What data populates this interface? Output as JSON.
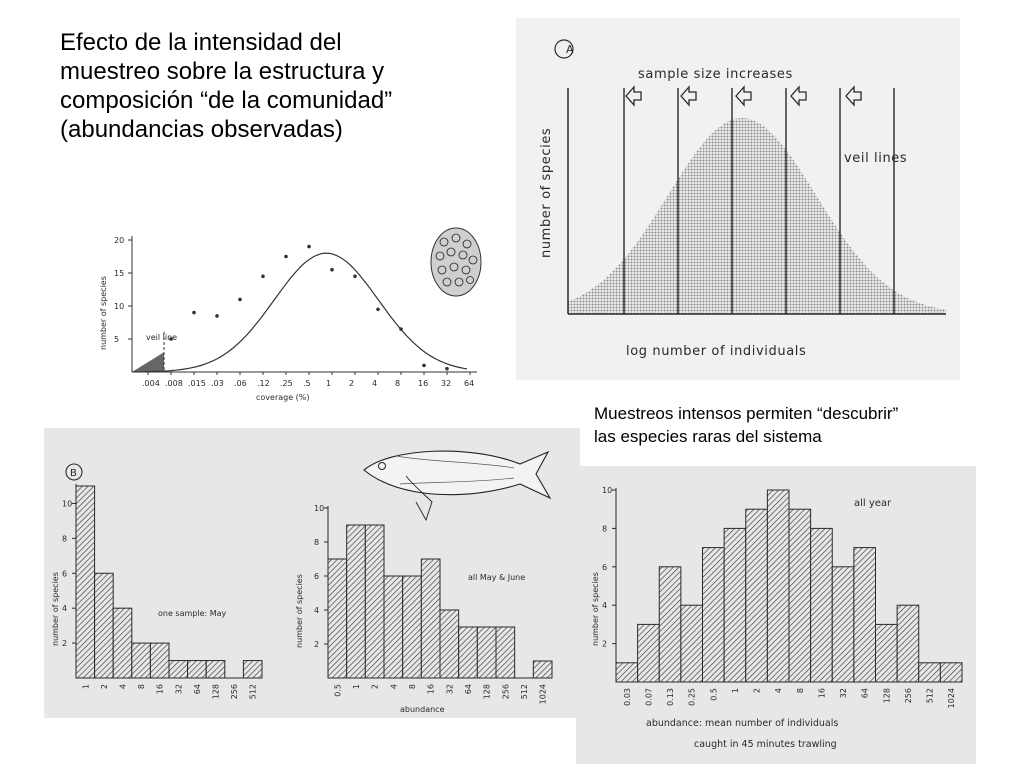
{
  "slide": {
    "title_lines": [
      "Efecto de la intensidad del",
      "muestreo sobre la estructura y",
      "composición “de la comunidad”",
      "(abundancias observadas)"
    ],
    "note_lines": [
      "Muestreos intensos permiten “descubrir”",
      "las especies raras del sistema"
    ]
  },
  "colors": {
    "panel_bg": "#e7e7e5",
    "ink": "#2a2a2a",
    "hatch": "#3a3a3a",
    "curve_fill": "#9a9a9a"
  },
  "chart_data": [
    {
      "id": "veil",
      "type": "area",
      "panel_label": "A",
      "annotation": "sample size increases",
      "veil_label": "veil lines",
      "ylabel": "number of species",
      "xlabel": "log number of individuals",
      "veil_line_count": 6,
      "arrow_count": 5
    },
    {
      "id": "coverage",
      "type": "scatter",
      "ylabel": "number of species",
      "xlabel": "coverage (%)",
      "x": [
        ".004",
        ".008",
        ".015",
        ".03",
        ".06",
        ".12",
        ".25",
        ".5",
        "1",
        "2",
        "4",
        "8",
        "16",
        "32",
        "64"
      ],
      "points": [
        5,
        9,
        8.5,
        11,
        14.5,
        17.5,
        19,
        15.5,
        14.5,
        9.5,
        6.5,
        1,
        0.5
      ],
      "yticks": [
        5,
        10,
        15,
        20
      ],
      "ylim": [
        0,
        20
      ],
      "annotation": "veil line"
    },
    {
      "id": "one-sample",
      "type": "bar",
      "panel_label": "B",
      "ylabel": "number of species",
      "legend": "one sample: May",
      "categories": [
        "1",
        "2",
        "4",
        "8",
        "16",
        "32",
        "64",
        "128",
        "256",
        "512"
      ],
      "values": [
        11,
        6,
        4,
        2,
        2,
        1,
        1,
        1,
        0,
        1
      ],
      "yticks": [
        2,
        4,
        6,
        8,
        10
      ],
      "ylim": [
        0,
        11
      ]
    },
    {
      "id": "may-june",
      "type": "bar",
      "ylabel": "number of species",
      "xlabel": "abundance",
      "legend": "all May & June",
      "categories": [
        "0.5",
        "1",
        "2",
        "4",
        "8",
        "16",
        "32",
        "64",
        "128",
        "256",
        "512",
        "1024"
      ],
      "values": [
        7,
        9,
        9,
        6,
        6,
        7,
        4,
        3,
        3,
        3,
        0,
        1
      ],
      "yticks": [
        2,
        4,
        6,
        8,
        10
      ],
      "ylim": [
        0,
        10
      ]
    },
    {
      "id": "all-year",
      "type": "bar",
      "ylabel": "number of species",
      "xlabel": "abundance:  mean number of individuals",
      "xlabel2": "caught in 45 minutes trawling",
      "legend": "all year",
      "categories": [
        "0.03",
        "0.07",
        "0.13",
        "0.25",
        "0.5",
        "1",
        "2",
        "4",
        "8",
        "16",
        "32",
        "64",
        "128",
        "256",
        "512",
        "1024"
      ],
      "values": [
        1,
        3,
        6,
        4,
        7,
        8,
        9,
        10,
        9,
        8,
        6,
        7,
        3,
        4,
        1,
        1
      ],
      "yticks": [
        2,
        4,
        6,
        8,
        10
      ],
      "ylim": [
        0,
        10
      ]
    }
  ]
}
